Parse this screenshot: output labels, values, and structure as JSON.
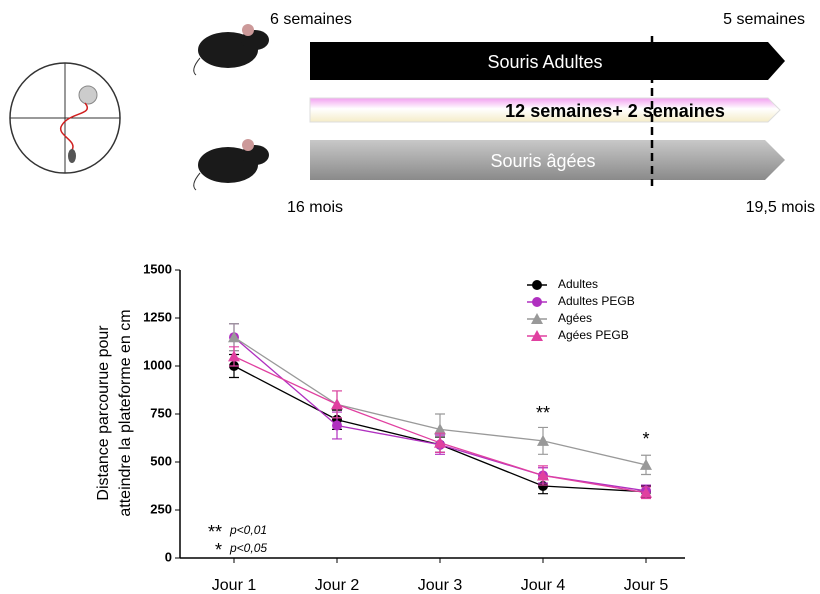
{
  "timeline": {
    "start_adult": "6 semaines",
    "end_adult": "5 semaines",
    "adult_bar": "Souris Adultes",
    "treatment_bar": "12 semaines+  2 semaines",
    "aged_bar": "Souris âgées",
    "start_aged": "16 mois",
    "end_aged": "19,5 mois"
  },
  "chart_data": {
    "type": "line",
    "y_label": [
      "Distance parcourue pour",
      "atteindre la plateforme en cm"
    ],
    "categories": [
      "Jour 1",
      "Jour 2",
      "Jour 3",
      "Jour 4",
      "Jour 5"
    ],
    "series": [
      {
        "name": "Adultes",
        "color": "#000000",
        "marker": "circle",
        "values": [
          1000,
          720,
          590,
          375,
          345
        ],
        "errors": [
          60,
          50,
          40,
          40,
          30
        ]
      },
      {
        "name": "Adultes PEGB",
        "color": "#b030c0",
        "marker": "circle",
        "values": [
          1150,
          690,
          590,
          430,
          350
        ],
        "errors": [
          70,
          70,
          50,
          40,
          30
        ]
      },
      {
        "name": "Agées",
        "color": "#999999",
        "marker": "triangle",
        "values": [
          1150,
          800,
          670,
          610,
          485
        ],
        "errors": [
          70,
          70,
          80,
          70,
          50
        ]
      },
      {
        "name": "Agées PEGB",
        "color": "#e040a0",
        "marker": "triangle",
        "values": [
          1050,
          800,
          600,
          430,
          340
        ],
        "errors": [
          50,
          70,
          50,
          50,
          30
        ]
      }
    ],
    "ylim": [
      0,
      1500
    ],
    "yticks": [
      0,
      250,
      500,
      750,
      1000,
      1250,
      1500
    ],
    "significance": [
      "**",
      "*"
    ],
    "significance_legend": [
      {
        "symbol": "**",
        "text": "p<0,01"
      },
      {
        "symbol": "*",
        "text": "p<0,05"
      }
    ]
  }
}
